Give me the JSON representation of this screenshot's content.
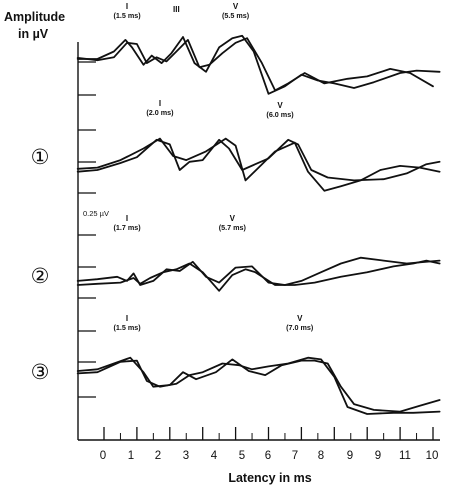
{
  "chart_data": {
    "type": "line",
    "title": "",
    "ylabel": [
      "Amplitude",
      "in µV"
    ],
    "xlabel": "Latency in ms",
    "xlim": [
      -0.8,
      10.2
    ],
    "x_ticks": [
      0,
      1,
      2,
      3,
      4,
      5,
      6,
      7,
      8,
      9,
      10
    ],
    "x_tick_labels": [
      "0",
      "1",
      "2",
      "3",
      "4",
      "5",
      "6",
      "7",
      "8",
      "9",
      "10"
    ],
    "x_tick_labels_printed": [
      "0",
      "1",
      "2",
      "3",
      "4",
      "5",
      "6",
      "7",
      "8",
      "9",
      "9",
      "11",
      "10"
    ],
    "scale_label": "0.25 µV",
    "scale_bar_uV": 0.25,
    "grid": false,
    "panels": [
      {
        "marker": "",
        "annotations": [
          {
            "text": [
              "I",
              "(1.5 ms)"
            ],
            "x": 0.7,
            "y": 0.98
          },
          {
            "text": [
              "III"
            ],
            "x": 2.2,
            "y": 0.93
          },
          {
            "text": [
              "V",
              "(5.5 ms)"
            ],
            "x": 4.0,
            "y": 0.98
          }
        ],
        "series": [
          {
            "values": [
              [
                -0.8,
                0.12
              ],
              [
                -0.2,
                0.12
              ],
              [
                0.3,
                0.25
              ],
              [
                0.65,
                0.45
              ],
              [
                0.85,
                0.32
              ],
              [
                1.2,
                0.02
              ],
              [
                1.45,
                0.18
              ],
              [
                1.75,
                0.05
              ],
              [
                2.05,
                0.22
              ],
              [
                2.4,
                0.5
              ],
              [
                2.75,
                0.05
              ],
              [
                3.1,
                -0.1
              ],
              [
                3.5,
                0.32
              ],
              [
                3.9,
                0.48
              ],
              [
                4.2,
                0.52
              ],
              [
                4.55,
                0.25
              ],
              [
                5.0,
                -0.48
              ],
              [
                5.5,
                -0.35
              ],
              [
                6.0,
                -0.15
              ],
              [
                6.5,
                -0.25
              ],
              [
                7.0,
                -0.3
              ],
              [
                7.6,
                -0.38
              ],
              [
                8.2,
                -0.28
              ],
              [
                9.0,
                -0.12
              ],
              [
                9.5,
                -0.08
              ],
              [
                10.2,
                -0.1
              ]
            ]
          },
          {
            "values": [
              [
                -0.8,
                0.14
              ],
              [
                -0.2,
                0.1
              ],
              [
                0.3,
                0.15
              ],
              [
                0.7,
                0.4
              ],
              [
                1.0,
                0.38
              ],
              [
                1.3,
                0.05
              ],
              [
                1.6,
                0.15
              ],
              [
                1.9,
                0.08
              ],
              [
                2.2,
                0.25
              ],
              [
                2.55,
                0.45
              ],
              [
                2.9,
                -0.02
              ],
              [
                3.2,
                0.02
              ],
              [
                3.6,
                0.22
              ],
              [
                4.0,
                0.4
              ],
              [
                4.35,
                0.48
              ],
              [
                4.8,
                0.05
              ],
              [
                5.2,
                -0.42
              ],
              [
                5.6,
                -0.3
              ],
              [
                6.1,
                -0.12
              ],
              [
                6.7,
                -0.3
              ],
              [
                7.4,
                -0.22
              ],
              [
                8.0,
                -0.18
              ],
              [
                8.7,
                -0.05
              ],
              [
                9.3,
                -0.12
              ],
              [
                10.0,
                -0.35
              ]
            ]
          }
        ]
      },
      {
        "marker": "①",
        "annotations": [
          {
            "text": [
              "I",
              "(2.0 ms)"
            ],
            "x": 1.7,
            "y": 0.98
          },
          {
            "text": [
              "V",
              "(6.0 ms)"
            ],
            "x": 5.35,
            "y": 0.95
          }
        ],
        "series": [
          {
            "values": [
              [
                -0.8,
                -0.15
              ],
              [
                -0.2,
                -0.12
              ],
              [
                0.5,
                0.0
              ],
              [
                1.0,
                0.1
              ],
              [
                1.6,
                0.4
              ],
              [
                2.0,
                0.32
              ],
              [
                2.3,
                -0.12
              ],
              [
                2.6,
                0.02
              ],
              [
                3.0,
                0.05
              ],
              [
                3.5,
                0.4
              ],
              [
                3.8,
                0.25
              ],
              [
                4.2,
                -0.12
              ],
              [
                4.6,
                -0.02
              ],
              [
                5.0,
                0.08
              ],
              [
                5.6,
                0.4
              ],
              [
                5.9,
                0.32
              ],
              [
                6.3,
                -0.12
              ],
              [
                6.8,
                -0.25
              ],
              [
                7.6,
                -0.3
              ],
              [
                8.5,
                -0.28
              ],
              [
                9.2,
                -0.18
              ],
              [
                9.8,
                -0.02
              ],
              [
                10.2,
                0.02
              ]
            ]
          },
          {
            "values": [
              [
                -0.8,
                -0.1
              ],
              [
                -0.2,
                -0.08
              ],
              [
                0.5,
                0.05
              ],
              [
                1.2,
                0.25
              ],
              [
                1.7,
                0.42
              ],
              [
                2.1,
                0.12
              ],
              [
                2.5,
                0.05
              ],
              [
                3.1,
                0.2
              ],
              [
                3.7,
                0.42
              ],
              [
                4.0,
                0.3
              ],
              [
                4.3,
                -0.3
              ],
              [
                4.7,
                -0.08
              ],
              [
                5.2,
                0.2
              ],
              [
                5.8,
                0.35
              ],
              [
                6.2,
                -0.15
              ],
              [
                6.7,
                -0.48
              ],
              [
                7.2,
                -0.4
              ],
              [
                7.8,
                -0.3
              ],
              [
                8.4,
                -0.12
              ],
              [
                9.0,
                -0.05
              ],
              [
                9.6,
                -0.08
              ],
              [
                10.2,
                -0.15
              ]
            ]
          }
        ]
      },
      {
        "marker": "②",
        "annotations": [
          {
            "text": [
              "I",
              "(1.7 ms)"
            ],
            "x": 0.7,
            "y": 0.98
          },
          {
            "text": [
              "V",
              "(5.7 ms)"
            ],
            "x": 3.9,
            "y": 0.98
          }
        ],
        "series": [
          {
            "values": [
              [
                -0.8,
                -0.12
              ],
              [
                -0.2,
                -0.1
              ],
              [
                0.5,
                -0.08
              ],
              [
                0.9,
                0.0
              ],
              [
                1.1,
                -0.1
              ],
              [
                1.4,
                0.0
              ],
              [
                1.8,
                0.1
              ],
              [
                2.2,
                0.15
              ],
              [
                2.6,
                0.25
              ],
              [
                3.0,
                0.1
              ],
              [
                3.5,
                -0.22
              ],
              [
                3.9,
                0.05
              ],
              [
                4.3,
                0.15
              ],
              [
                4.6,
                0.1
              ],
              [
                5.2,
                -0.12
              ],
              [
                5.8,
                -0.12
              ],
              [
                6.4,
                -0.08
              ],
              [
                7.2,
                0.02
              ],
              [
                8.0,
                0.1
              ],
              [
                8.8,
                0.2
              ],
              [
                9.4,
                0.25
              ],
              [
                9.8,
                0.3
              ],
              [
                10.2,
                0.25
              ]
            ]
          },
          {
            "values": [
              [
                -0.8,
                -0.05
              ],
              [
                -0.2,
                -0.02
              ],
              [
                0.4,
                0.02
              ],
              [
                0.7,
                -0.05
              ],
              [
                0.9,
                0.08
              ],
              [
                1.1,
                -0.12
              ],
              [
                1.5,
                -0.05
              ],
              [
                1.9,
                0.15
              ],
              [
                2.3,
                0.12
              ],
              [
                2.7,
                0.28
              ],
              [
                3.1,
                0.02
              ],
              [
                3.5,
                -0.08
              ],
              [
                4.0,
                0.18
              ],
              [
                4.5,
                0.2
              ],
              [
                5.0,
                -0.08
              ],
              [
                5.5,
                -0.12
              ],
              [
                6.0,
                -0.05
              ],
              [
                6.6,
                0.1
              ],
              [
                7.2,
                0.25
              ],
              [
                7.8,
                0.35
              ],
              [
                8.5,
                0.3
              ],
              [
                9.2,
                0.25
              ],
              [
                10.2,
                0.3
              ]
            ]
          }
        ]
      },
      {
        "marker": "③",
        "annotations": [
          {
            "text": [
              "I",
              "(1.5 ms)"
            ],
            "x": 0.7,
            "y": 0.98
          },
          {
            "text": [
              "V",
              "(7.0 ms)"
            ],
            "x": 5.95,
            "y": 0.98
          }
        ],
        "series": [
          {
            "values": [
              [
                -0.8,
                0.12
              ],
              [
                -0.2,
                0.15
              ],
              [
                0.3,
                0.25
              ],
              [
                0.8,
                0.35
              ],
              [
                1.2,
                0.1
              ],
              [
                1.5,
                -0.15
              ],
              [
                2.0,
                -0.12
              ],
              [
                2.4,
                0.1
              ],
              [
                2.8,
                -0.02
              ],
              [
                3.4,
                0.1
              ],
              [
                3.9,
                0.32
              ],
              [
                4.4,
                0.12
              ],
              [
                4.9,
                0.05
              ],
              [
                5.4,
                0.22
              ],
              [
                6.0,
                0.3
              ],
              [
                6.4,
                0.3
              ],
              [
                6.8,
                0.25
              ],
              [
                7.2,
                -0.15
              ],
              [
                7.6,
                -0.45
              ],
              [
                8.2,
                -0.55
              ],
              [
                9.0,
                -0.58
              ],
              [
                9.6,
                -0.48
              ],
              [
                10.2,
                -0.38
              ]
            ]
          },
          {
            "values": [
              [
                -0.8,
                0.08
              ],
              [
                -0.2,
                0.1
              ],
              [
                0.5,
                0.28
              ],
              [
                1.0,
                0.3
              ],
              [
                1.3,
                -0.05
              ],
              [
                1.7,
                -0.15
              ],
              [
                2.2,
                -0.1
              ],
              [
                2.6,
                0.05
              ],
              [
                3.0,
                0.1
              ],
              [
                3.6,
                0.25
              ],
              [
                4.1,
                0.22
              ],
              [
                4.5,
                0.15
              ],
              [
                5.0,
                0.2
              ],
              [
                5.6,
                0.25
              ],
              [
                6.2,
                0.35
              ],
              [
                6.6,
                0.32
              ],
              [
                7.0,
                0.02
              ],
              [
                7.4,
                -0.5
              ],
              [
                8.0,
                -0.62
              ],
              [
                8.8,
                -0.6
              ],
              [
                9.4,
                -0.6
              ],
              [
                10.2,
                -0.58
              ]
            ]
          }
        ]
      }
    ]
  }
}
